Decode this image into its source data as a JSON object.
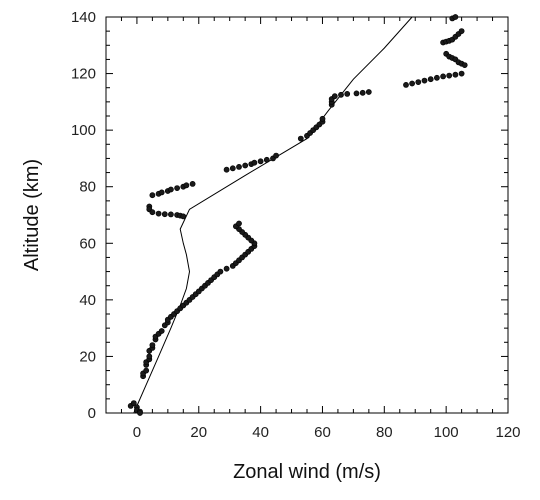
{
  "chart_data": {
    "type": "scatter",
    "xlabel": "Zonal wind (m/s)",
    "ylabel": "Altitude (km)",
    "xlim": [
      -10,
      120
    ],
    "ylim": [
      0,
      140
    ],
    "xticks": [
      0,
      20,
      40,
      60,
      80,
      100,
      120
    ],
    "yticks": [
      0,
      20,
      40,
      60,
      80,
      100,
      120,
      140
    ],
    "xtick_labels": [
      "0",
      "20",
      "40",
      "60",
      "80",
      "100",
      "120"
    ],
    "ytick_labels": [
      "0",
      "20",
      "40",
      "60",
      "80",
      "100",
      "120",
      "140"
    ],
    "grid": false,
    "legend": "none",
    "series": [
      {
        "kind": "line",
        "color": "#000000",
        "points": [
          [
            -1,
            0
          ],
          [
            3,
            10
          ],
          [
            7,
            20
          ],
          [
            11,
            30
          ],
          [
            14,
            38
          ],
          [
            16,
            44
          ],
          [
            17,
            50
          ],
          [
            16,
            56
          ],
          [
            15,
            60
          ],
          [
            14,
            65
          ],
          [
            17,
            72
          ],
          [
            35,
            84
          ],
          [
            55,
            97
          ],
          [
            62,
            107
          ],
          [
            70,
            118
          ],
          [
            80,
            129
          ],
          [
            89,
            140
          ]
        ]
      },
      {
        "kind": "points",
        "color": "#1a1a1a",
        "points": [
          [
            -2,
            2.5
          ],
          [
            -1,
            3.5
          ],
          [
            0,
            2
          ],
          [
            0,
            1
          ],
          [
            1,
            0.5
          ],
          [
            1,
            0
          ],
          [
            2,
            13
          ],
          [
            2,
            14
          ],
          [
            3,
            15
          ],
          [
            3,
            17
          ],
          [
            3,
            18
          ],
          [
            4,
            19
          ],
          [
            4,
            20
          ],
          [
            4,
            22
          ],
          [
            5,
            23
          ],
          [
            5,
            24
          ],
          [
            6,
            26
          ],
          [
            6,
            27
          ],
          [
            7,
            28
          ],
          [
            8,
            29
          ],
          [
            9,
            31
          ],
          [
            10,
            32
          ],
          [
            10,
            33
          ],
          [
            11,
            34
          ],
          [
            12,
            35
          ],
          [
            13,
            36
          ],
          [
            14,
            37
          ],
          [
            15,
            38
          ],
          [
            16,
            39
          ],
          [
            17,
            40
          ],
          [
            18,
            41
          ],
          [
            19,
            42
          ],
          [
            20,
            43
          ],
          [
            21,
            44
          ],
          [
            22,
            45
          ],
          [
            23,
            46
          ],
          [
            24,
            47
          ],
          [
            25,
            48
          ],
          [
            26,
            49
          ],
          [
            27,
            50
          ],
          [
            29,
            51
          ],
          [
            31,
            52
          ],
          [
            32,
            53
          ],
          [
            33,
            54
          ],
          [
            34,
            55
          ],
          [
            35,
            56
          ],
          [
            36,
            57
          ],
          [
            37,
            58
          ],
          [
            38,
            59
          ],
          [
            38,
            60
          ],
          [
            37,
            61
          ],
          [
            36,
            62
          ],
          [
            35,
            63
          ],
          [
            34,
            64
          ],
          [
            33,
            65
          ],
          [
            32,
            66
          ],
          [
            33,
            67
          ],
          [
            4,
            73
          ],
          [
            4,
            72
          ],
          [
            5,
            71
          ],
          [
            7,
            70.5
          ],
          [
            9,
            70.3
          ],
          [
            11,
            70.2
          ],
          [
            13,
            70
          ],
          [
            14,
            69.8
          ],
          [
            15,
            69.5
          ],
          [
            5,
            77
          ],
          [
            7,
            77.5
          ],
          [
            8,
            78
          ],
          [
            10,
            78.5
          ],
          [
            11,
            79
          ],
          [
            13,
            79.5
          ],
          [
            15,
            80
          ],
          [
            16,
            80.5
          ],
          [
            18,
            81
          ],
          [
            29,
            86
          ],
          [
            31,
            86.5
          ],
          [
            33,
            87
          ],
          [
            35,
            87.5
          ],
          [
            37,
            88
          ],
          [
            38,
            88.5
          ],
          [
            40,
            89
          ],
          [
            42,
            89.5
          ],
          [
            44,
            90
          ],
          [
            45,
            91
          ],
          [
            53,
            97
          ],
          [
            55,
            98
          ],
          [
            56,
            99
          ],
          [
            57,
            100
          ],
          [
            58,
            101
          ],
          [
            59,
            102
          ],
          [
            60,
            103
          ],
          [
            60,
            104
          ],
          [
            63,
            109
          ],
          [
            63,
            110
          ],
          [
            63,
            111
          ],
          [
            64,
            112
          ],
          [
            66,
            112.5
          ],
          [
            68,
            112.8
          ],
          [
            71,
            113
          ],
          [
            73,
            113.2
          ],
          [
            75,
            113.5
          ],
          [
            87,
            116
          ],
          [
            89,
            116.5
          ],
          [
            91,
            117
          ],
          [
            93,
            117.5
          ],
          [
            95,
            118
          ],
          [
            97,
            118.5
          ],
          [
            99,
            119
          ],
          [
            101,
            119.3
          ],
          [
            103,
            119.6
          ],
          [
            105,
            120
          ],
          [
            100,
            127
          ],
          [
            101,
            126
          ],
          [
            102,
            125.5
          ],
          [
            103,
            125
          ],
          [
            104,
            124
          ],
          [
            105,
            123.5
          ],
          [
            106,
            123
          ],
          [
            99,
            131
          ],
          [
            100,
            131.3
          ],
          [
            101,
            131.6
          ],
          [
            102,
            132
          ],
          [
            103,
            133
          ],
          [
            104,
            134
          ],
          [
            105,
            135
          ],
          [
            102,
            139.5
          ],
          [
            103,
            140
          ]
        ]
      }
    ]
  }
}
